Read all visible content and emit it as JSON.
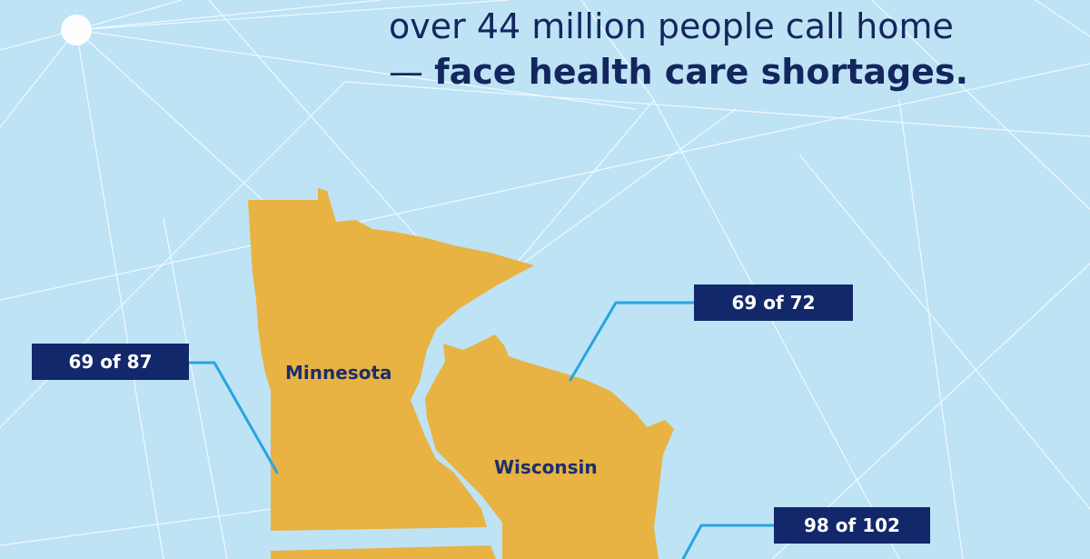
{
  "headline": {
    "line1": "over 44 million people call home",
    "line2_dash": "— ",
    "line2_bold": "face health care shortages."
  },
  "map": {
    "states": [
      {
        "name": "Minnesota"
      },
      {
        "name": "Wisconsin"
      }
    ],
    "callouts": [
      {
        "text": "69 of 87"
      },
      {
        "text": "69 of 72"
      },
      {
        "text": "98 of 102"
      }
    ]
  },
  "colors": {
    "background": "#bde3f5",
    "state_fill": "#e8b342",
    "callout_bg": "#13286b",
    "leader_line": "#29a3df",
    "network_line": "#ffffff"
  }
}
